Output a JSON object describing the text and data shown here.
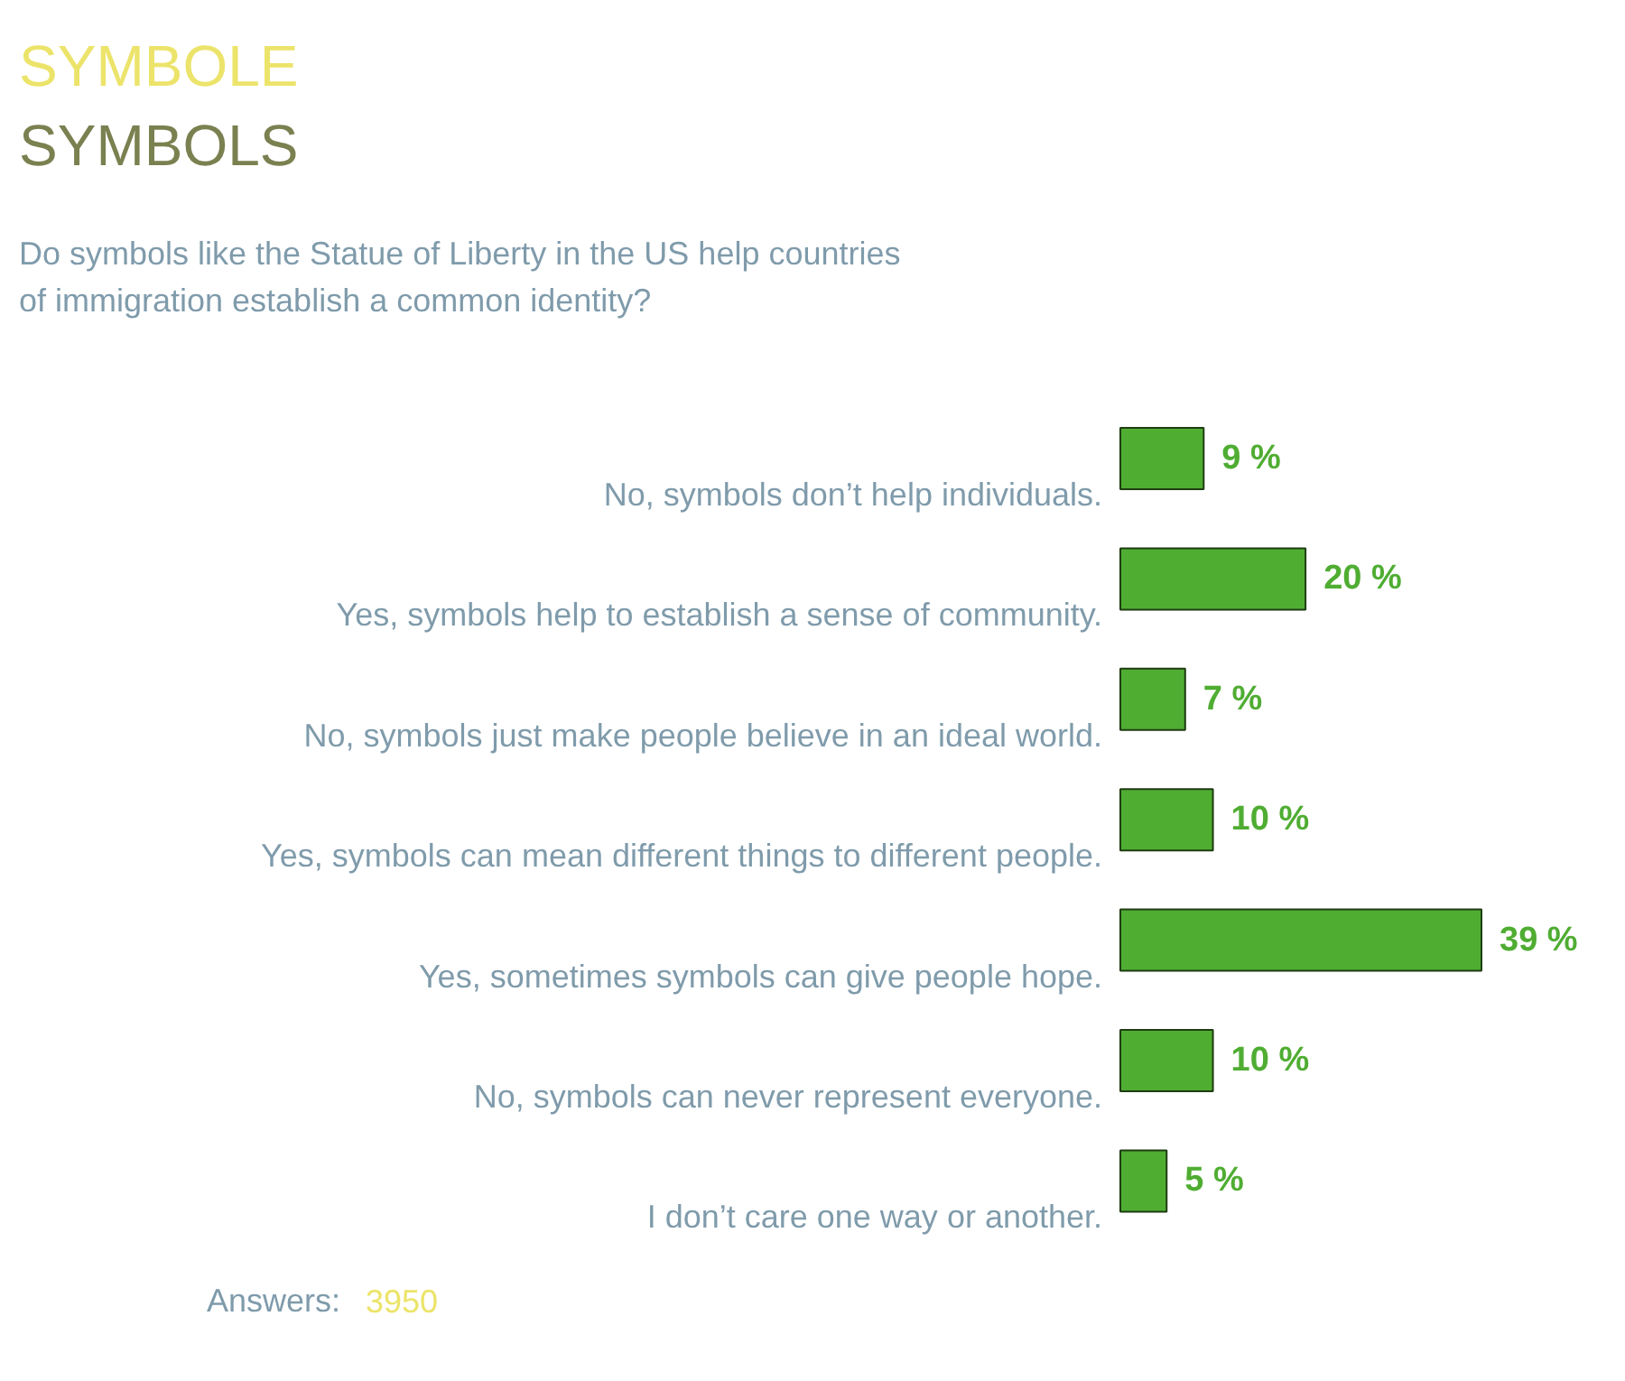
{
  "chart_data": {
    "type": "bar",
    "orientation": "horizontal",
    "title": "SYMBOLE",
    "subtitle": "SYMBOLS",
    "annotations": [
      "Do symbols like the Statue of Liberty in the US help countries of immigration establish a common identity?",
      "Answers:",
      "3950"
    ],
    "categories": [
      "No, symbols don’t help individuals.",
      "Yes, symbols help to establish a sense of community.",
      "No, symbols just make people believe in an ideal world.",
      "Yes, symbols can mean different things to different people.",
      "Yes, sometimes symbols can give people hope.",
      "No, symbols can never represent everyone.",
      "I don’t care one way or another."
    ],
    "values": [
      9,
      20,
      7,
      10,
      39,
      10,
      5
    ],
    "value_labels": [
      "9 %",
      "20 %",
      "7 %",
      "10 %",
      "39 %",
      "10 %",
      "5 %"
    ],
    "color": "#4fad32",
    "grid": false
  }
}
